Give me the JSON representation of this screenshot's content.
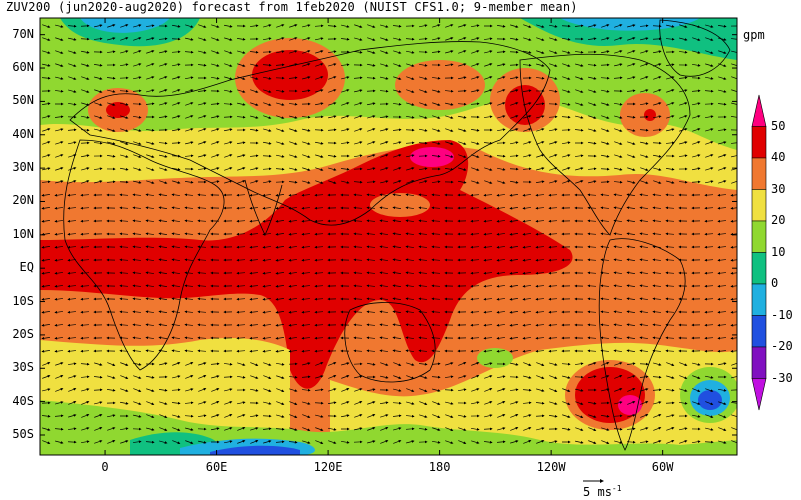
{
  "title": "ZUV200 (jun2020-aug2020) forecast from 1feb2020 (NUIST CFS1.0; 9-member mean)",
  "units": "gpm",
  "lat_labels": [
    "70N",
    "60N",
    "50N",
    "40N",
    "30N",
    "20N",
    "10N",
    "EQ",
    "10S",
    "20S",
    "30S",
    "40S",
    "50S"
  ],
  "lon_labels": [
    "0",
    "60E",
    "120E",
    "180",
    "120W",
    "60W"
  ],
  "colorbar": {
    "labels": [
      "50",
      "40",
      "30",
      "20",
      "10",
      "0",
      "-10",
      "-20",
      "-30"
    ],
    "levels": [
      {
        "color": "#ff0080"
      },
      {
        "color": "#e00000"
      },
      {
        "color": "#f07830"
      },
      {
        "color": "#f0e040"
      },
      {
        "color": "#90d830"
      },
      {
        "color": "#10c080"
      },
      {
        "color": "#20b0e0"
      },
      {
        "color": "#2050e0"
      },
      {
        "color": "#8010c0"
      },
      {
        "color": "#c010e0"
      }
    ]
  },
  "reference_vector": {
    "value": "5",
    "unit": "ms",
    "exponent": "-1"
  },
  "map": {
    "lon_range": [
      -35,
      340
    ],
    "lat_range": [
      -56,
      75
    ]
  }
}
